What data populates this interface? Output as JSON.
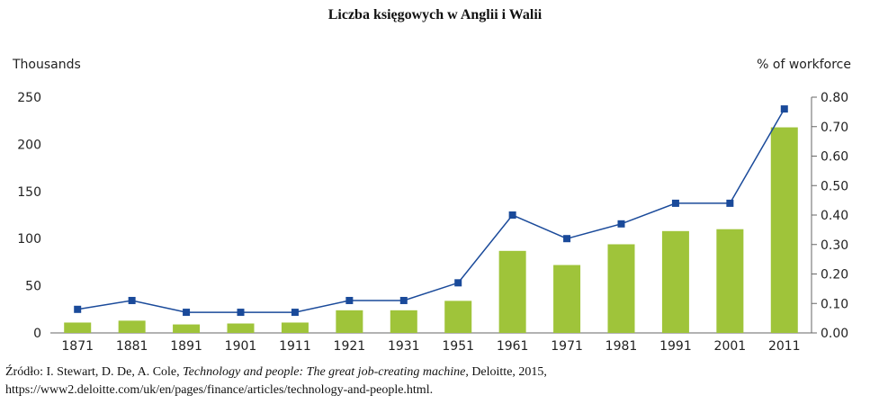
{
  "chart_data": {
    "type": "bar+line",
    "title": "Liczba księgowych w Anglii i Walii",
    "y_left_label": "Thousands",
    "y_right_label": "% of workforce",
    "y_left_range": [
      0,
      250
    ],
    "y_left_ticks": [
      "0",
      "50",
      "100",
      "150",
      "200",
      "250"
    ],
    "y_right_range": [
      0,
      0.8
    ],
    "y_right_ticks": [
      "0.00",
      "0.10",
      "0.20",
      "0.30",
      "0.40",
      "0.50",
      "0.60",
      "0.70",
      "0.80"
    ],
    "categories": [
      "1871",
      "1881",
      "1891",
      "1901",
      "1911",
      "1921",
      "1931",
      "1951",
      "1961",
      "1971",
      "1981",
      "1991",
      "2001",
      "2011"
    ],
    "series": [
      {
        "kind": "bar",
        "axis": "left",
        "color": "#9fc43a",
        "values": [
          11,
          13,
          9,
          10,
          11,
          24,
          24,
          34,
          87,
          72,
          94,
          108,
          110,
          218
        ]
      },
      {
        "kind": "line",
        "axis": "right",
        "color": "#1a4a9a",
        "values": [
          0.08,
          0.11,
          0.07,
          0.07,
          0.07,
          0.11,
          0.11,
          0.17,
          0.4,
          0.32,
          0.37,
          0.44,
          0.44,
          0.76
        ]
      }
    ],
    "legend": "none",
    "grid": false
  },
  "source": {
    "prefix": "Źródło: I. Stewart, D. De, A. Cole, ",
    "title": "Technology and people: The great job-creating machine",
    "suffix": ", Deloitte, 2015, https://www2.deloitte.com/uk/en/pages/finance/articles/technology-and-people.html."
  }
}
